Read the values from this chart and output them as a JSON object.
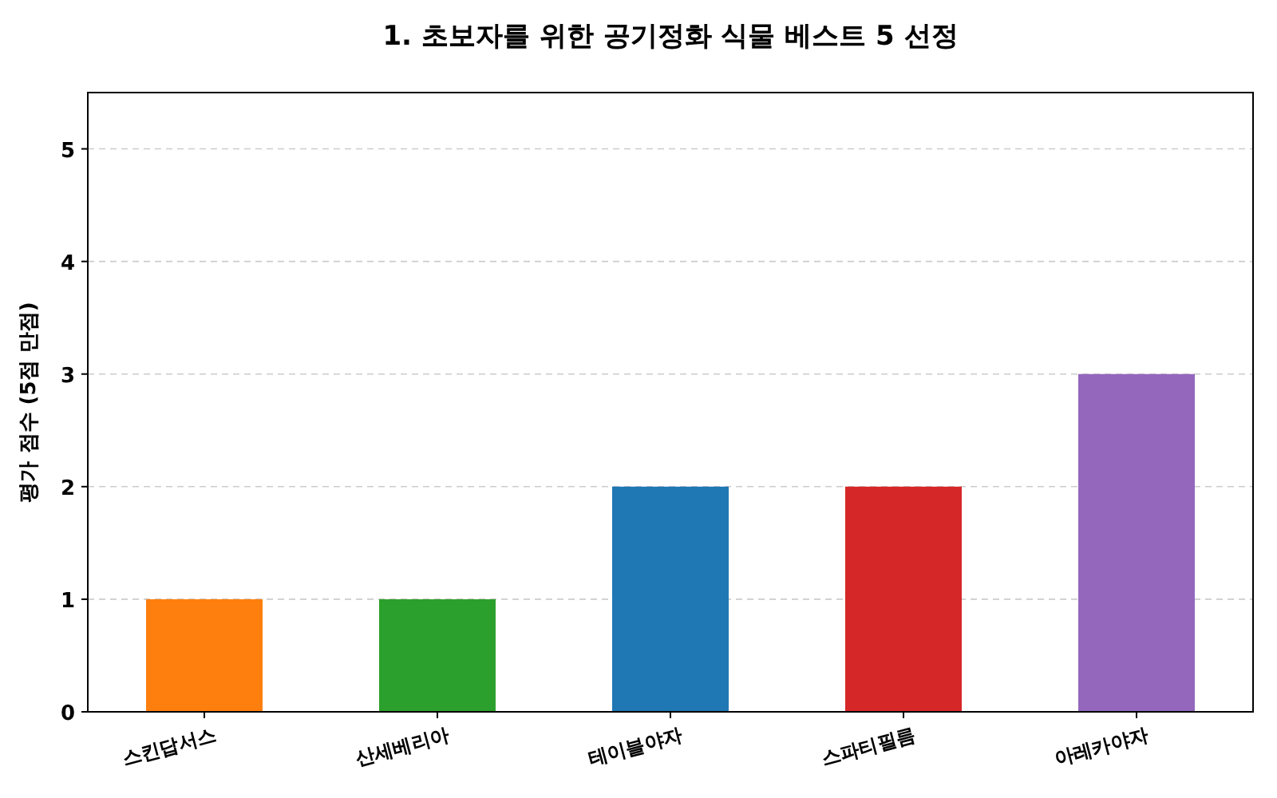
{
  "chart_data": {
    "type": "bar",
    "title": "1. 초보자를 위한 공기정화 식물 베스트 5 선정",
    "ylabel": "평가 점수 (5점 만점)",
    "categories": [
      "스킨답서스",
      "산세베리아",
      "테이블야자",
      "스파티필름",
      "아레카야자"
    ],
    "values": [
      1,
      1,
      2,
      2,
      3
    ],
    "colors": [
      "#ff7f0e",
      "#2ca02c",
      "#1f77b4",
      "#d62728",
      "#9467bd"
    ],
    "ylim": [
      0,
      5.5
    ],
    "yticks": [
      0,
      1,
      2,
      3,
      4,
      5
    ],
    "grid": "y"
  }
}
